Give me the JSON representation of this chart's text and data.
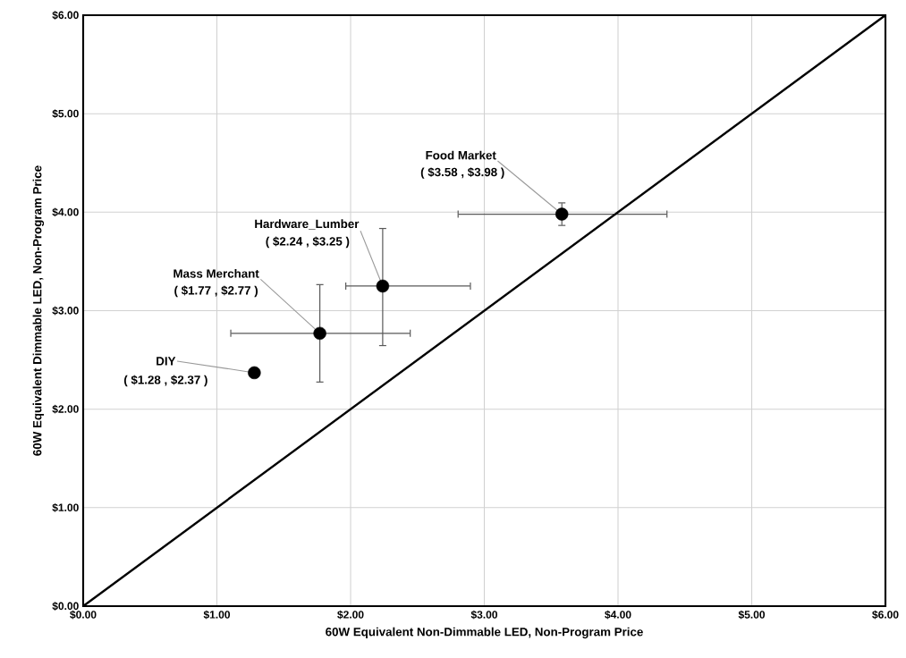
{
  "chart_data": {
    "type": "scatter",
    "xlabel": "60W Equivalent Non-Dimmable LED, Non-Program Price",
    "ylabel": "60W Equivalent Dimmable LED, Non-Program Price",
    "xlim": [
      0,
      6
    ],
    "ylim": [
      0,
      6
    ],
    "xticks": [
      {
        "value": 0,
        "label": "$0.00"
      },
      {
        "value": 1,
        "label": "$1.00"
      },
      {
        "value": 2,
        "label": "$2.00"
      },
      {
        "value": 3,
        "label": "$3.00"
      },
      {
        "value": 4,
        "label": "$4.00"
      },
      {
        "value": 5,
        "label": "$5.00"
      },
      {
        "value": 6,
        "label": "$6.00"
      }
    ],
    "yticks": [
      {
        "value": 0,
        "label": "$0.00"
      },
      {
        "value": 1,
        "label": "$1.00"
      },
      {
        "value": 2,
        "label": "$2.00"
      },
      {
        "value": 3,
        "label": "$3.00"
      },
      {
        "value": 4,
        "label": "$4.00"
      },
      {
        "value": 5,
        "label": "$5.00"
      },
      {
        "value": 6,
        "label": "$6.00"
      }
    ],
    "grid": true,
    "marker": "circle",
    "series": [
      {
        "color": "#000000",
        "x": [
          1.28,
          1.77,
          2.24,
          3.58
        ],
        "values": [
          2.37,
          2.77,
          3.25,
          3.98
        ],
        "xerrors": [
          null,
          [
            1.1,
            2.45
          ],
          [
            1.96,
            2.9
          ],
          [
            2.8,
            4.37
          ]
        ],
        "errors": [
          null,
          [
            2.27,
            3.27
          ],
          [
            2.64,
            3.84
          ],
          [
            3.86,
            4.1
          ]
        ]
      },
      {
        "type": "line",
        "marker": "none",
        "color": "#000000",
        "x": [
          0,
          6
        ],
        "values": [
          0,
          6
        ]
      }
    ],
    "annotations": [
      {
        "text": "DIY",
        "x": 1.28,
        "y": 2.37
      },
      {
        "text": "( $1.28 , $2.37 )",
        "x": 1.28,
        "y": 2.37
      },
      {
        "text": "Mass Merchant",
        "x": 1.77,
        "y": 2.77
      },
      {
        "text": "( $1.77 , $2.77 )",
        "x": 1.77,
        "y": 2.77
      },
      {
        "text": "Hardware_Lumber",
        "x": 2.24,
        "y": 3.25
      },
      {
        "text": "( $2.24 , $3.25 )",
        "x": 2.24,
        "y": 3.25
      },
      {
        "text": "Food Market",
        "x": 3.58,
        "y": 3.98
      },
      {
        "text": "( $3.58 , $3.98 )",
        "x": 3.58,
        "y": 3.98
      }
    ]
  }
}
